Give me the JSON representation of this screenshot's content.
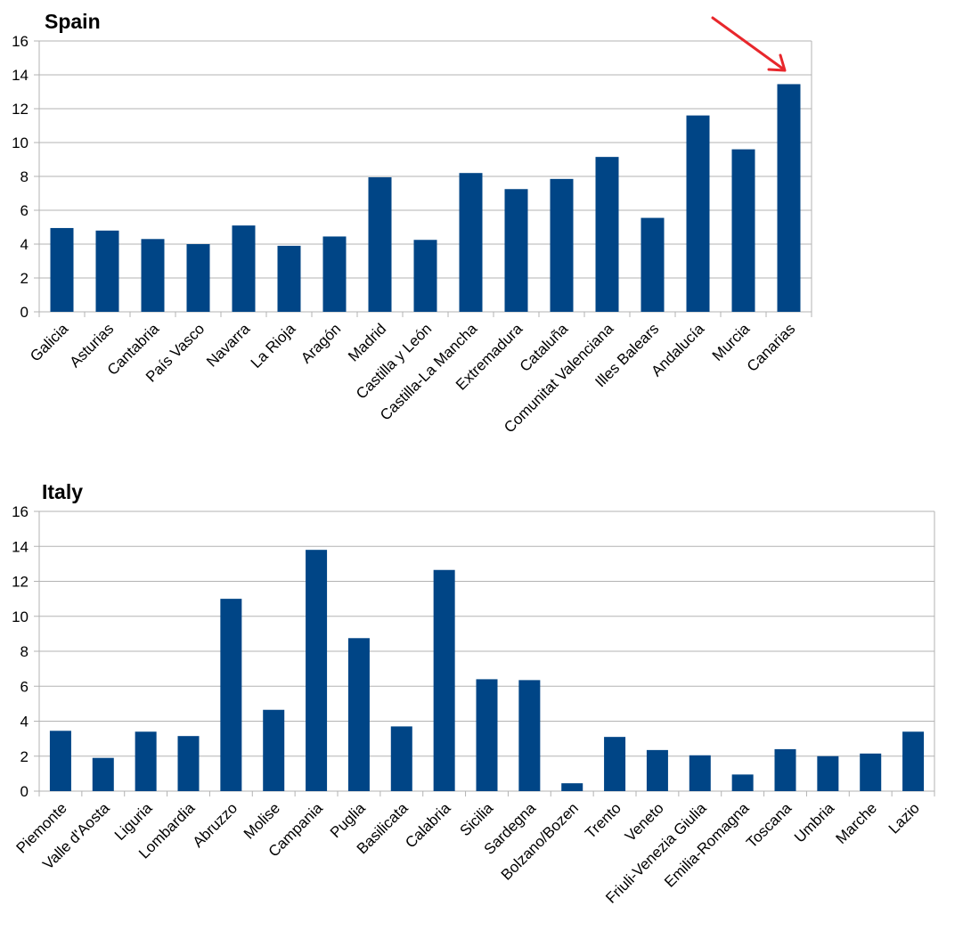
{
  "chart_data": [
    {
      "type": "bar",
      "title": "Spain",
      "categories": [
        "Galicia",
        "Asturias",
        "Cantabria",
        "País Vasco",
        "Navarra",
        "La Rioja",
        "Aragón",
        "Madrid",
        "Castilla y León",
        "Castilla-La Mancha",
        "Extremadura",
        "Cataluña",
        "Comunitat Valenciana",
        "Illes Balears",
        "Andalucía",
        "Murcia",
        "Canarias"
      ],
      "values": [
        4.95,
        4.8,
        4.3,
        4.0,
        5.1,
        3.9,
        4.45,
        7.95,
        4.25,
        8.2,
        7.25,
        7.85,
        9.15,
        5.55,
        11.6,
        9.6,
        13.45
      ],
      "ylim": [
        0,
        16
      ],
      "yticks": [
        0,
        2,
        4,
        6,
        8,
        10,
        12,
        14,
        16
      ],
      "grid": true,
      "bar_color": "#004586",
      "annotation": "red arrow pointing at Canarias",
      "annotation_color": "#e8272c"
    },
    {
      "type": "bar",
      "title": "Italy",
      "categories": [
        "Piemonte",
        "Valle d'Aosta",
        "Liguria",
        "Lombardia",
        "Abruzzo",
        "Molise",
        "Campania",
        "Puglia",
        "Basilicata",
        "Calabria",
        "Sicilia",
        "Sardegna",
        "Bolzano/Bozen",
        "Trento",
        "Veneto",
        "Friuli-Venezia Giulia",
        "Emilia-Romagna",
        "Toscana",
        "Umbria",
        "Marche",
        "Lazio"
      ],
      "values": [
        3.45,
        1.9,
        3.4,
        3.15,
        11.0,
        4.65,
        13.8,
        8.75,
        3.7,
        12.65,
        6.4,
        6.35,
        0.45,
        3.1,
        2.35,
        2.05,
        0.95,
        2.4,
        2.0,
        2.15,
        3.4
      ],
      "ylim": [
        0,
        16
      ],
      "yticks": [
        0,
        2,
        4,
        6,
        8,
        10,
        12,
        14,
        16
      ],
      "grid": true,
      "bar_color": "#004586"
    }
  ]
}
